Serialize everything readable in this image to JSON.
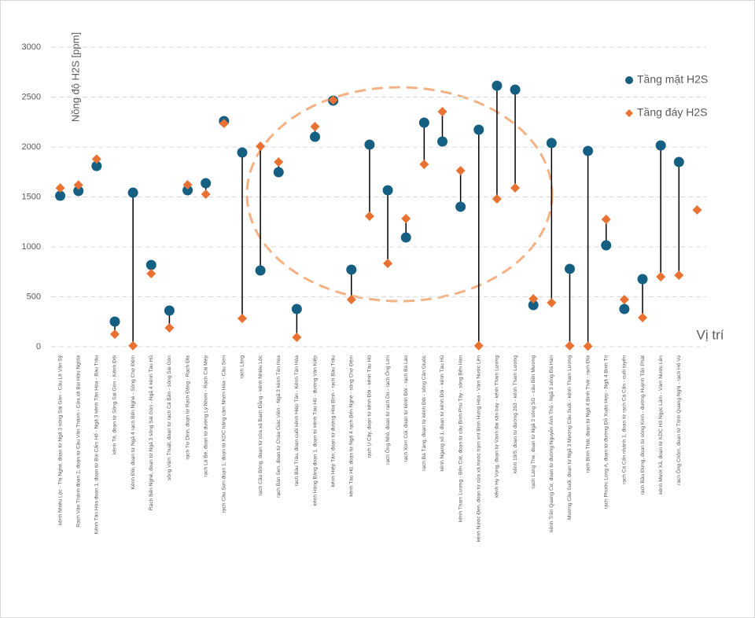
{
  "chart_data": {
    "type": "dumbbell",
    "y_label": "Nồng độ H2S [ppm]",
    "x_label": "Vị trí",
    "categories": [
      "kênh Nhiêu Lộc - Thị Nghè, đoạn từ Ngã 3 sông Sài Gòn - Cầu Lê Văn Sỹ",
      "Rạch Văn Thánh đoạn 2, đoạn từ Cầu Văn Thánh - Cửa xả Bùi Hữu Nghĩa",
      "Kênh Tân Hóa đoạn 1, đoạn từ Bùi Cẩm Hổ - Ngã 3 kênh Tân Hóa - Bàu Trâu",
      "kênh Tẻ, đoạn từ Sông Sài Gòn - Kênh Đôi",
      "Kênh Đôi, đoạn từ Ngã 4 rạch Bến Nghé - Sông Chợ Đệm",
      "Rạch Bến Nghé, đoạn từ Ngã 3 sông Sài Gòn - Ngã 4 kênh Tàu Hũ",
      "sông Vàm Thuật, đoạn từ rạch Cả Bần - sông Sài Gòn",
      "rạch Tư Dinh, đoạn từ Rạch Đăng - Rạch Đỉa",
      "rạch Lá Bé, đoạn từ đường Lý Nhơn - Rạch Cái Mép",
      "rạch Cầu Sơn đoạn 1, đoạn từ KDC hãng cám Nhơn Hòa - Cầu Sơn",
      "rạch Lăng",
      "rạch Cầu Bông, đoạn từ cửa xả Bạch Đằng - kênh Nhiêu Lộc",
      "rạch Bàn Sen, đoạn từ Chùa Giác Viên - Ngã 3 kênh Tân Hóa",
      "rạch Bàu Trâu, đoạn cuối kênh Hiệp Tân - Kênh Tân Hóa",
      "kênh Hàng Bàng đoạn 1, đoạn từ kênh Tàu Hũ - đường Văn Kiếp",
      "kênh Hiệp Tân, đoạn từ đường Hòa Bình - rạch Bàu Trâu",
      "kênh Tàu Hũ, đoạn từ Ngã 4 rạch Bến Nghé - sông Chợ Đệm",
      "rạch Ụ Cây, đoạn từ kênh Đôi - kênh Tàu Hũ",
      "rạch Ông Nhỏ, đoạn từ rạch Dù - rạch Ông Lớn",
      "rạch Xóm Củi, đoạn từ kênh Đôi - rạch Bà Lào",
      "rạch Bà Tàng, đoạn từ kênh Đôi - sông Cần Giuộc",
      "kênh Ngang số 1, đoạn từ kênh Đôi - kênh Tàu Hũ",
      "kênh Tham Lương - Bến Cát, đoạn từ cầu Bình Phú Tây - sông Bến Hàn",
      "kênh Nước Đen, đoạn từ cửa xả trước trạm xnt Bình Hưng Hòa - Vàm Nước Lên",
      "kênh Hy Vọng, đoạn từ Vành đai sân bay - kênh Tham Lương",
      "kênh 19/5, đoạn từ đường 263 - kênh Tham Lương",
      "rạch Láng The, đoạn từ Ngã 3 sông SG - cầu Bến Mương",
      "kênh Trần Quang Cơ, đoạn từ đường Nguyễn Ánh Thủ - Ngã 3 sông Đá Hàn",
      "Mương Cầu Suối, đoạn từ Ngã 3 Mương Cầu Suối - kênh Tham Lương",
      "rạch Bình Thái, đoạn từ Ngã 4 Bình Thái - rạch Đĩa",
      "rạch Phước Long A, đoạn từ đường Đỗ Xuân Hợp - Ngã 4 Bình Trị",
      "rạch Cá Cấn nhánh 1, đoạn từ rạch Cá Cấn - cuối tuyến",
      "rạch Bầu Đưng, đoạn từ sông Kinh - đường Huỳnh Tấn Phát",
      "kênh Mười Xã, đoạn từ KDC Hố Ngọc Lầm - Vàm Nước Lên",
      "rạch Ông Chồm, đoạn từ Trịnh Quang Nghị - rạch Hố Vo",
      null
    ],
    "series": [
      {
        "name": "Tầng mặt H2S",
        "color": "#156082",
        "marker": "circle",
        "values": [
          1512,
          1560,
          1810,
          252,
          1543,
          819,
          362,
          1567,
          1638,
          2260,
          1945,
          764,
          1748,
          378,
          2102,
          2465,
          772,
          2024,
          1567,
          1094,
          2244,
          2055,
          1402,
          2173,
          2614,
          2575,
          417,
          2040,
          780,
          1961,
          1016,
          378,
          677,
          2016,
          1850,
          null
        ]
      },
      {
        "name": "Tầng đáy H2S",
        "color": "#e97132",
        "marker": "diamond",
        "values": [
          1590,
          1620,
          1880,
          126,
          10,
          732,
          189,
          1622,
          1528,
          2236,
          283,
          2008,
          1850,
          94,
          2205,
          2470,
          472,
          1307,
          835,
          1283,
          1827,
          2354,
          1764,
          10,
          1480,
          1591,
          480,
          441,
          10,
          5,
          1276,
          472,
          291,
          701,
          716,
          1370
        ]
      }
    ],
    "ylim": [
      0,
      3000
    ],
    "yticks": [
      0,
      500,
      1000,
      1500,
      2000,
      2500,
      3000
    ],
    "grid": true
  }
}
